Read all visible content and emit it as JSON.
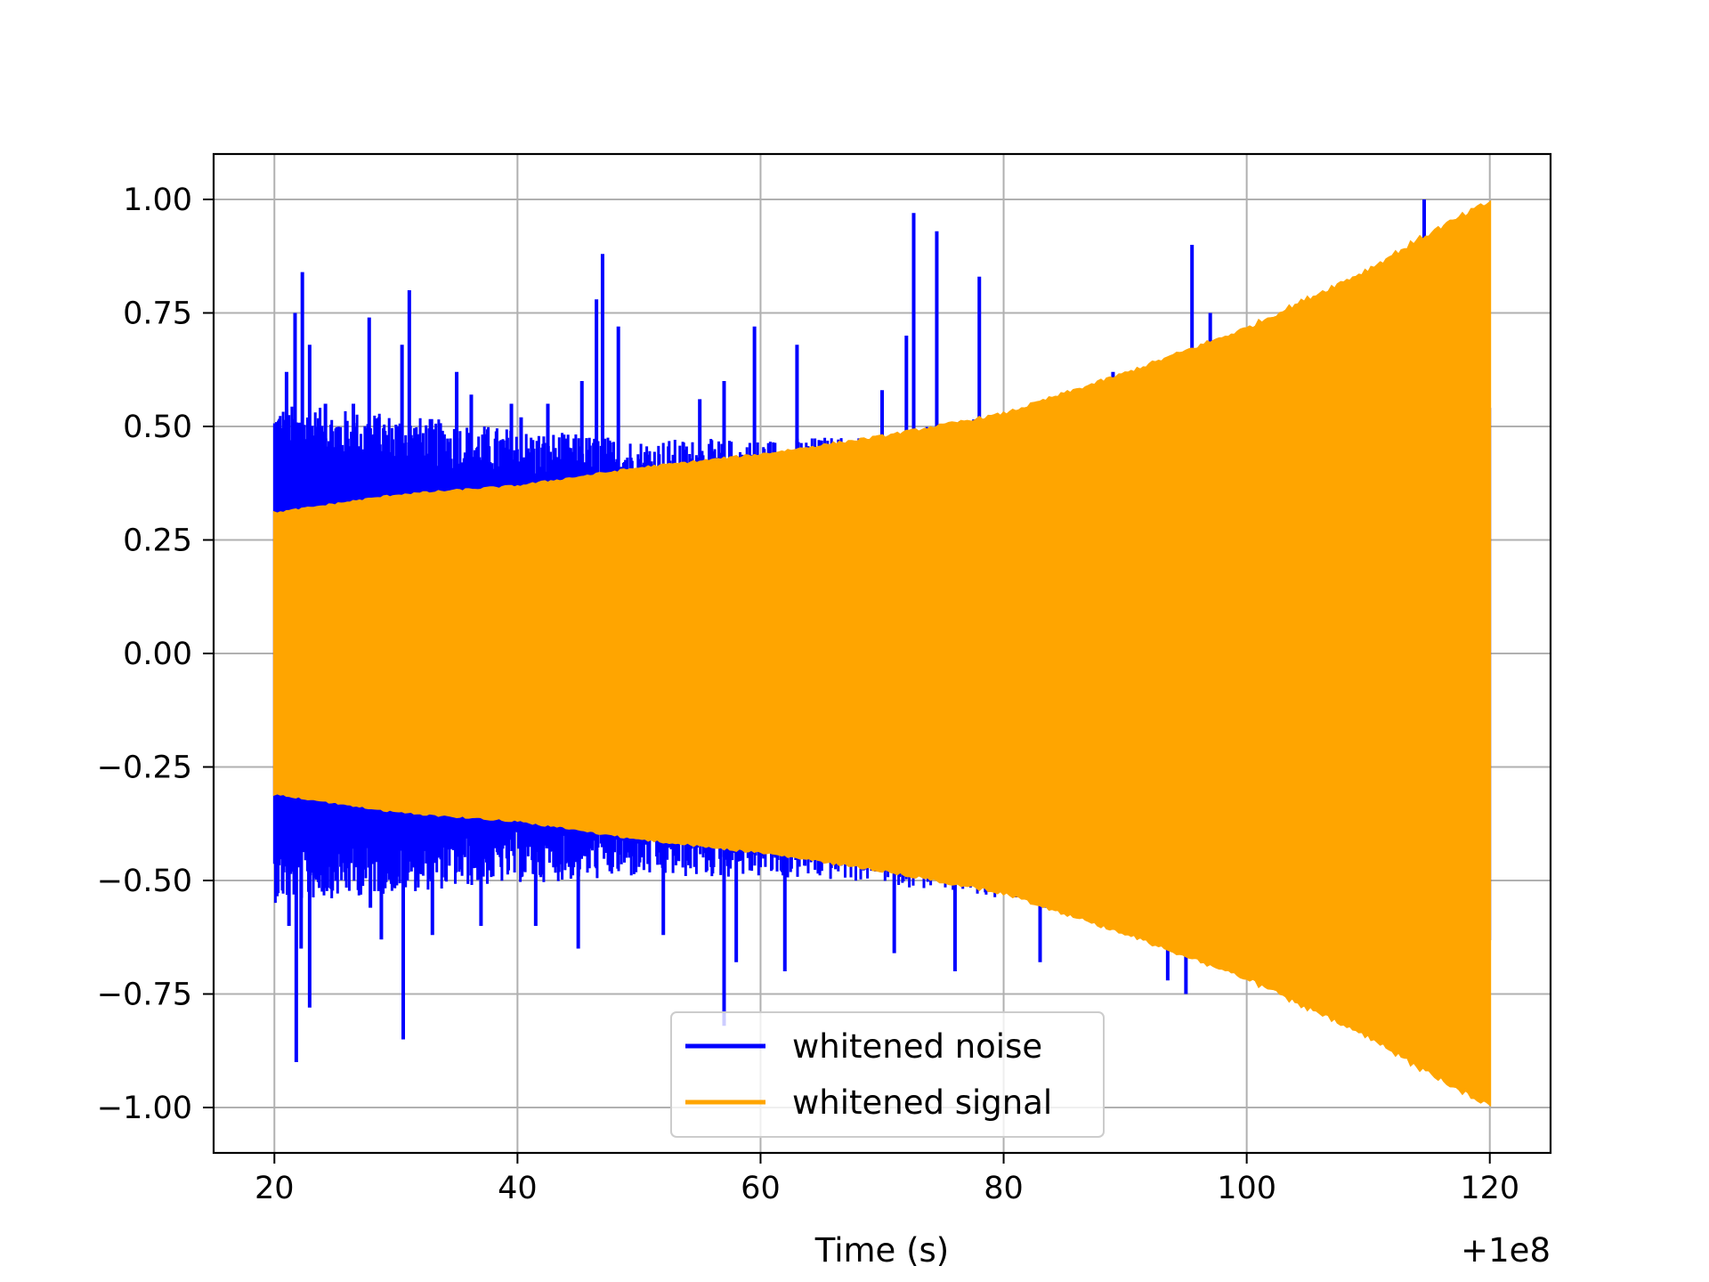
{
  "chart_data": {
    "type": "line",
    "title": "",
    "xlabel": "Time (s)",
    "ylabel": "",
    "x_offset_label": "+1e8",
    "xlim": [
      15,
      125
    ],
    "ylim": [
      -1.1,
      1.1
    ],
    "x_ticks": [
      20,
      40,
      60,
      80,
      100,
      120
    ],
    "x_tick_labels": [
      "20",
      "40",
      "60",
      "80",
      "100",
      "120"
    ],
    "y_ticks": [
      1.0,
      0.75,
      0.5,
      0.25,
      0.0,
      -0.25,
      -0.5,
      -0.75,
      -1.0
    ],
    "y_tick_labels": [
      "1.00",
      "0.75",
      "0.50",
      "0.25",
      "0.00",
      "−0.25",
      "−0.50",
      "−0.75",
      "−1.00"
    ],
    "grid": true,
    "legend_position": "lower-center",
    "series": [
      {
        "name": "whitened noise",
        "color": "#0000ff",
        "x_range": [
          20,
          120
        ],
        "envelope_upper": [
          [
            20,
            0.5
          ],
          [
            30,
            0.48
          ],
          [
            40,
            0.45
          ],
          [
            50,
            0.43
          ],
          [
            60,
            0.43
          ],
          [
            70,
            0.44
          ],
          [
            80,
            0.48
          ],
          [
            90,
            0.52
          ],
          [
            100,
            0.55
          ],
          [
            110,
            0.6
          ],
          [
            120,
            0.62
          ]
        ],
        "envelope_lower": [
          [
            20,
            -0.5
          ],
          [
            30,
            -0.48
          ],
          [
            40,
            -0.46
          ],
          [
            50,
            -0.45
          ],
          [
            60,
            -0.45
          ],
          [
            70,
            -0.46
          ],
          [
            80,
            -0.5
          ],
          [
            90,
            -0.53
          ],
          [
            100,
            -0.56
          ],
          [
            110,
            -0.6
          ],
          [
            120,
            -0.62
          ]
        ],
        "peaks": [
          [
            21.0,
            0.62
          ],
          [
            21.7,
            0.75
          ],
          [
            22.3,
            0.84
          ],
          [
            22.9,
            0.68
          ],
          [
            24.2,
            0.55
          ],
          [
            26.5,
            0.55
          ],
          [
            27.8,
            0.74
          ],
          [
            28.6,
            0.52
          ],
          [
            30.5,
            0.68
          ],
          [
            31.1,
            0.8
          ],
          [
            35.0,
            0.62
          ],
          [
            36.2,
            0.57
          ],
          [
            39.5,
            0.55
          ],
          [
            40.3,
            0.52
          ],
          [
            42.5,
            0.55
          ],
          [
            45.3,
            0.6
          ],
          [
            46.5,
            0.78
          ],
          [
            47.0,
            0.88
          ],
          [
            48.3,
            0.72
          ],
          [
            55.0,
            0.56
          ],
          [
            57.0,
            0.6
          ],
          [
            59.5,
            0.72
          ],
          [
            63.0,
            0.68
          ],
          [
            70.0,
            0.58
          ],
          [
            72.0,
            0.7
          ],
          [
            72.6,
            0.97
          ],
          [
            74.5,
            0.93
          ],
          [
            78.0,
            0.83
          ],
          [
            89.0,
            0.62
          ],
          [
            93.0,
            0.62
          ],
          [
            95.5,
            0.9
          ],
          [
            97.0,
            0.75
          ],
          [
            114.6,
            1.0
          ]
        ],
        "troughs": [
          [
            21.2,
            -0.6
          ],
          [
            21.8,
            -0.9
          ],
          [
            22.2,
            -0.65
          ],
          [
            22.9,
            -0.78
          ],
          [
            27.9,
            -0.56
          ],
          [
            28.8,
            -0.63
          ],
          [
            30.6,
            -0.85
          ],
          [
            33.0,
            -0.62
          ],
          [
            37.0,
            -0.6
          ],
          [
            41.5,
            -0.6
          ],
          [
            45.0,
            -0.65
          ],
          [
            52.0,
            -0.62
          ],
          [
            57.0,
            -0.82
          ],
          [
            58.0,
            -0.68
          ],
          [
            62.0,
            -0.7
          ],
          [
            71.0,
            -0.66
          ],
          [
            76.0,
            -0.7
          ],
          [
            83.0,
            -0.68
          ],
          [
            93.5,
            -0.72
          ],
          [
            95.0,
            -0.75
          ]
        ]
      },
      {
        "name": "whitened signal",
        "color": "#ffa500",
        "x_range": [
          20,
          120
        ],
        "amplitude_envelope": [
          [
            20,
            0.31
          ],
          [
            30,
            0.35
          ],
          [
            40,
            0.37
          ],
          [
            45,
            0.39
          ],
          [
            50,
            0.41
          ],
          [
            60,
            0.44
          ],
          [
            70,
            0.48
          ],
          [
            80,
            0.53
          ],
          [
            90,
            0.62
          ],
          [
            100,
            0.72
          ],
          [
            110,
            0.85
          ],
          [
            115,
            0.93
          ],
          [
            120,
            1.0
          ]
        ]
      }
    ]
  }
}
